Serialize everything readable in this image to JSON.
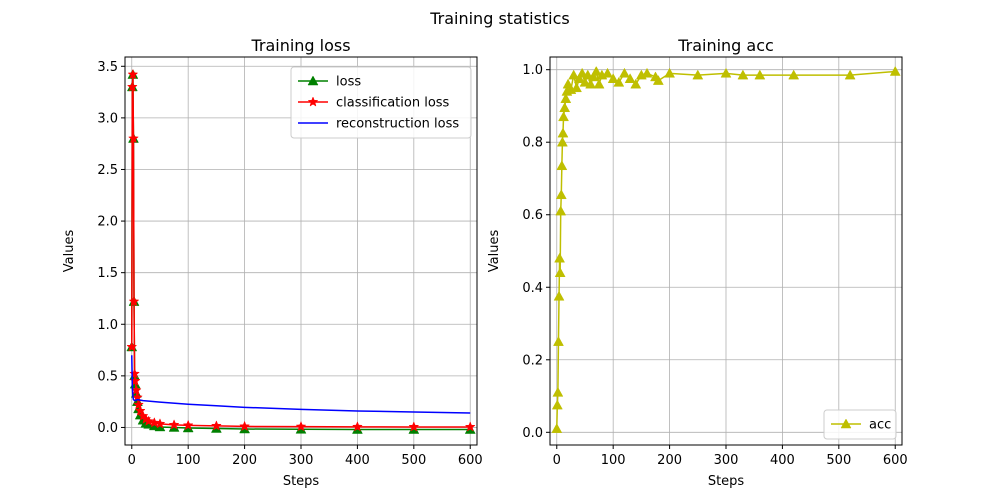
{
  "figure": {
    "suptitle": "Training statistics"
  },
  "chart_data": [
    {
      "type": "line",
      "title": "Training loss",
      "xlabel": "Steps",
      "ylabel": "Values",
      "xlim": [
        -12,
        612
      ],
      "ylim": [
        -0.17,
        3.59
      ],
      "xticks": [
        0,
        100,
        200,
        300,
        400,
        500,
        600
      ],
      "yticks": [
        0.0,
        0.5,
        1.0,
        1.5,
        2.0,
        2.5,
        3.0,
        3.5
      ],
      "yticks_labels": [
        "0.0",
        "0.5",
        "1.0",
        "1.5",
        "2.0",
        "2.5",
        "3.0",
        "3.5"
      ],
      "grid": true,
      "legend_position": "top-right",
      "series": [
        {
          "name": "loss",
          "color": "#008000",
          "marker": "triangle",
          "x": [
            0,
            1,
            2,
            3,
            4,
            5,
            6,
            8,
            10,
            12,
            15,
            20,
            25,
            30,
            40,
            50,
            75,
            100,
            150,
            200,
            300,
            400,
            500,
            600
          ],
          "y": [
            0.78,
            3.3,
            3.42,
            2.8,
            1.22,
            0.5,
            0.42,
            0.33,
            0.25,
            0.18,
            0.12,
            0.07,
            0.04,
            0.03,
            0.015,
            0.005,
            0.0,
            -0.005,
            -0.01,
            -0.015,
            -0.018,
            -0.02,
            -0.02,
            -0.02
          ]
        },
        {
          "name": "classification loss",
          "color": "#ff0000",
          "marker": "star",
          "x": [
            0,
            1,
            2,
            3,
            4,
            5,
            6,
            8,
            10,
            12,
            15,
            20,
            25,
            30,
            40,
            50,
            75,
            100,
            150,
            200,
            300,
            400,
            500,
            600
          ],
          "y": [
            0.78,
            3.3,
            3.42,
            2.8,
            1.22,
            0.52,
            0.45,
            0.36,
            0.29,
            0.22,
            0.16,
            0.11,
            0.08,
            0.06,
            0.045,
            0.035,
            0.025,
            0.02,
            0.015,
            0.01,
            0.008,
            0.006,
            0.005,
            0.005
          ]
        },
        {
          "name": "reconstruction loss",
          "color": "#0000ff",
          "marker": "none",
          "x": [
            0,
            1,
            2,
            3,
            5,
            8,
            10,
            20,
            50,
            100,
            150,
            200,
            300,
            400,
            500,
            600
          ],
          "y": [
            0.7,
            0.4,
            0.3,
            0.27,
            0.26,
            0.265,
            0.27,
            0.26,
            0.245,
            0.225,
            0.21,
            0.195,
            0.175,
            0.16,
            0.15,
            0.14
          ]
        }
      ]
    },
    {
      "type": "line",
      "title": "Training acc",
      "xlabel": "Steps",
      "ylabel": "Values",
      "xlim": [
        -12,
        612
      ],
      "ylim": [
        -0.035,
        1.035
      ],
      "xticks": [
        0,
        100,
        200,
        300,
        400,
        500,
        600
      ],
      "yticks": [
        0.0,
        0.2,
        0.4,
        0.6,
        0.8,
        1.0
      ],
      "yticks_labels": [
        "0.0",
        "0.2",
        "0.4",
        "0.6",
        "0.8",
        "1.0"
      ],
      "grid": true,
      "legend_position": "bottom-right",
      "series": [
        {
          "name": "acc",
          "color": "#bfbf00",
          "marker": "triangle",
          "x": [
            0,
            1,
            2,
            3,
            4,
            5,
            6,
            7,
            8,
            9,
            10,
            11,
            12,
            14,
            16,
            18,
            20,
            25,
            30,
            35,
            40,
            45,
            50,
            55,
            60,
            65,
            70,
            75,
            80,
            90,
            100,
            110,
            120,
            130,
            140,
            150,
            160,
            175,
            180,
            200,
            250,
            300,
            330,
            360,
            420,
            520,
            600
          ],
          "y": [
            0.01,
            0.075,
            0.11,
            0.25,
            0.375,
            0.48,
            0.44,
            0.61,
            0.655,
            0.735,
            0.8,
            0.825,
            0.87,
            0.895,
            0.92,
            0.94,
            0.96,
            0.945,
            0.985,
            0.95,
            0.975,
            0.99,
            0.965,
            0.985,
            0.96,
            0.98,
            0.995,
            0.96,
            0.985,
            0.99,
            0.975,
            0.965,
            0.99,
            0.975,
            0.96,
            0.985,
            0.99,
            0.98,
            0.97,
            0.99,
            0.985,
            0.99,
            0.985,
            0.985,
            0.985,
            0.985,
            0.995
          ]
        }
      ]
    }
  ]
}
